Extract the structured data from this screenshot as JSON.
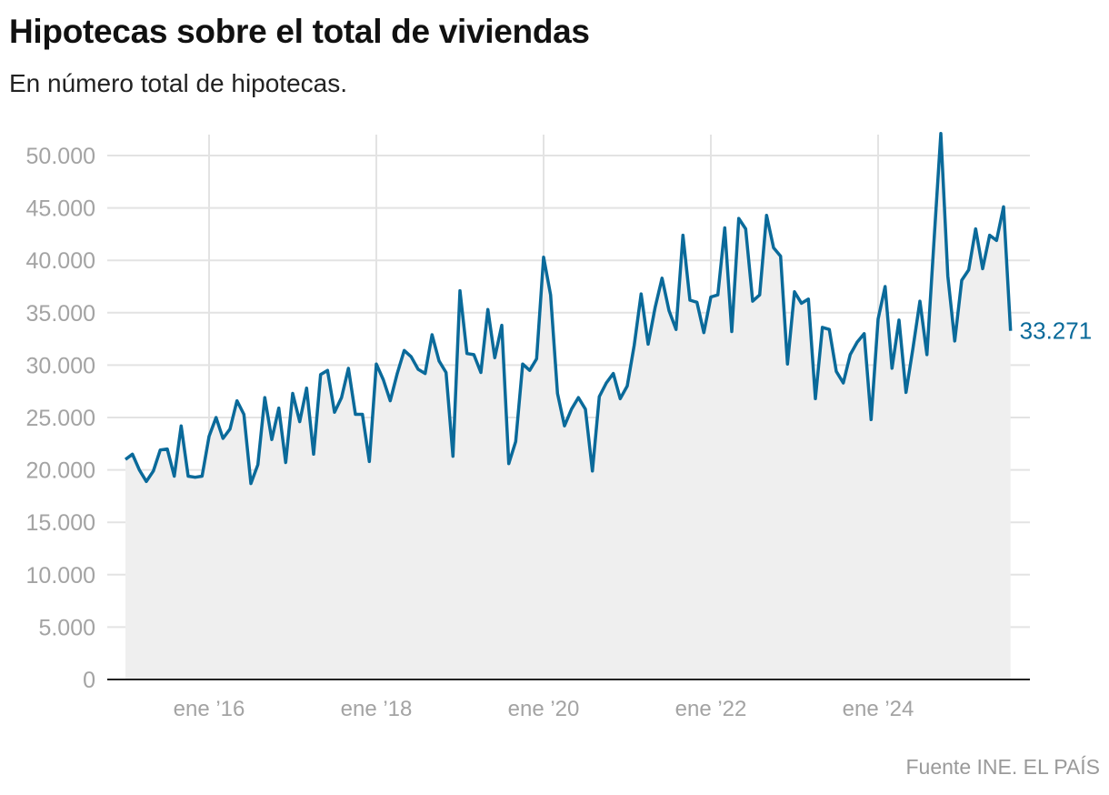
{
  "title": "Hipotecas sobre el total de viviendas",
  "subtitle": "En número total de hipotecas.",
  "source": "Fuente INE. EL PAÍS",
  "colors": {
    "line": "#0a6a9a",
    "area": "#efefef",
    "grid": "#e3e3e3",
    "axis": "#222222",
    "tick_text": "#a3a3a3"
  },
  "chart_data": {
    "type": "area",
    "title": "Hipotecas sobre el total de viviendas",
    "subtitle": "En número total de hipotecas.",
    "xlabel": "",
    "ylabel": "",
    "ylim": [
      0,
      52000
    ],
    "grid": true,
    "x_start": "2015-01",
    "x_end": "2025-08",
    "x_ticks": [
      {
        "date": "2016-01",
        "label": "ene ’16"
      },
      {
        "date": "2018-01",
        "label": "ene ’18"
      },
      {
        "date": "2020-01",
        "label": "ene ’20"
      },
      {
        "date": "2022-01",
        "label": "ene ’22"
      },
      {
        "date": "2024-01",
        "label": "ene ’24"
      }
    ],
    "y_ticks": [
      {
        "value": 0,
        "label": "0"
      },
      {
        "value": 5000,
        "label": "5.000"
      },
      {
        "value": 10000,
        "label": "10.000"
      },
      {
        "value": 15000,
        "label": "15.000"
      },
      {
        "value": 20000,
        "label": "20.000"
      },
      {
        "value": 25000,
        "label": "25.000"
      },
      {
        "value": 30000,
        "label": "30.000"
      },
      {
        "value": 35000,
        "label": "35.000"
      },
      {
        "value": 40000,
        "label": "40.000"
      },
      {
        "value": 45000,
        "label": "45.000"
      },
      {
        "value": 50000,
        "label": "50.000"
      }
    ],
    "end_label": "33.271",
    "values": [
      21000,
      21500,
      20000,
      18900,
      19900,
      21900,
      22000,
      19400,
      24200,
      19400,
      19300,
      19400,
      23200,
      25000,
      23000,
      23900,
      26600,
      25300,
      18700,
      20500,
      26900,
      22900,
      25900,
      20700,
      27300,
      24600,
      27800,
      21500,
      29100,
      29500,
      25500,
      26900,
      29700,
      25300,
      25300,
      20800,
      30100,
      28600,
      26600,
      29200,
      31400,
      30800,
      29600,
      29200,
      32900,
      30400,
      29300,
      21300,
      37100,
      31100,
      31000,
      29300,
      35300,
      30700,
      33800,
      20600,
      22700,
      30100,
      29500,
      30600,
      40300,
      36700,
      27300,
      24200,
      25800,
      26900,
      25800,
      19900,
      27000,
      28300,
      29200,
      26800,
      28000,
      31900,
      36800,
      32000,
      35500,
      38300,
      35200,
      33400,
      42400,
      36200,
      36000,
      33100,
      36500,
      36700,
      43100,
      33200,
      44000,
      43000,
      36100,
      36700,
      44300,
      41200,
      40400,
      30100,
      37000,
      35900,
      36300,
      26800,
      33600,
      33400,
      29400,
      28300,
      31000,
      32200,
      33000,
      24800,
      34400,
      37500,
      29700,
      34300,
      27400,
      31600,
      36100,
      31000,
      41600,
      52100,
      38500,
      32300,
      38100,
      39100,
      43000,
      39200,
      42400,
      41900,
      45100,
      33271
    ]
  }
}
